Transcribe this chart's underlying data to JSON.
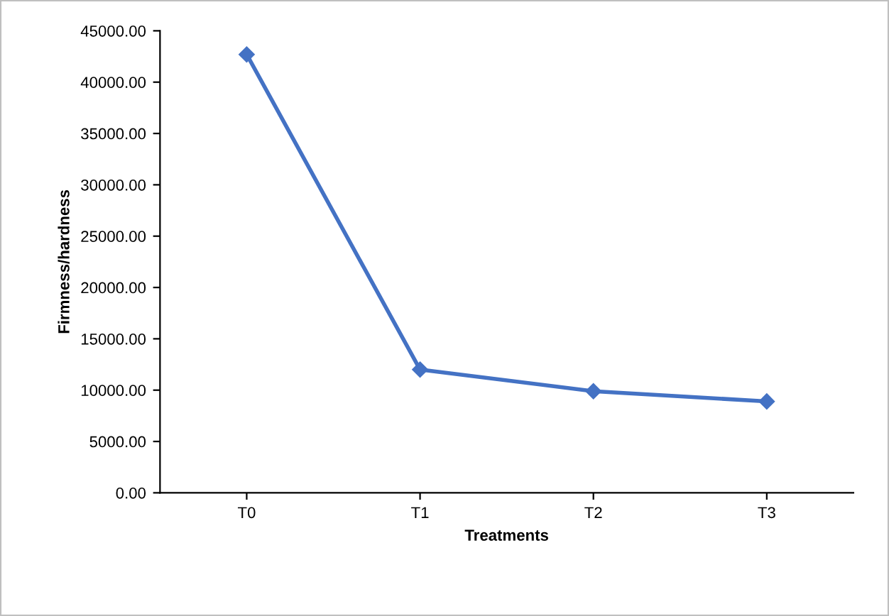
{
  "chart_data": {
    "type": "line",
    "xlabel": "Treatments",
    "ylabel": "Firmness/hardness",
    "categories": [
      "T0",
      "T1",
      "T2",
      "T3"
    ],
    "series": [
      {
        "color": "#4472c4",
        "values": [
          42700,
          12000,
          9900,
          8900
        ]
      }
    ],
    "ylim": [
      0,
      45000
    ],
    "yticks": [
      {
        "value": 0,
        "label": "0.00"
      },
      {
        "value": 5000,
        "label": "5000.00"
      },
      {
        "value": 10000,
        "label": "10000.00"
      },
      {
        "value": 15000,
        "label": "15000.00"
      },
      {
        "value": 20000,
        "label": "20000.00"
      },
      {
        "value": 25000,
        "label": "25000.00"
      },
      {
        "value": 30000,
        "label": "30000.00"
      },
      {
        "value": 35000,
        "label": "35000.00"
      },
      {
        "value": 40000,
        "label": "40000.00"
      },
      {
        "value": 45000,
        "label": "45000.00"
      }
    ],
    "grid": false,
    "legend": false,
    "marker": "diamond",
    "line_style": "solid"
  }
}
